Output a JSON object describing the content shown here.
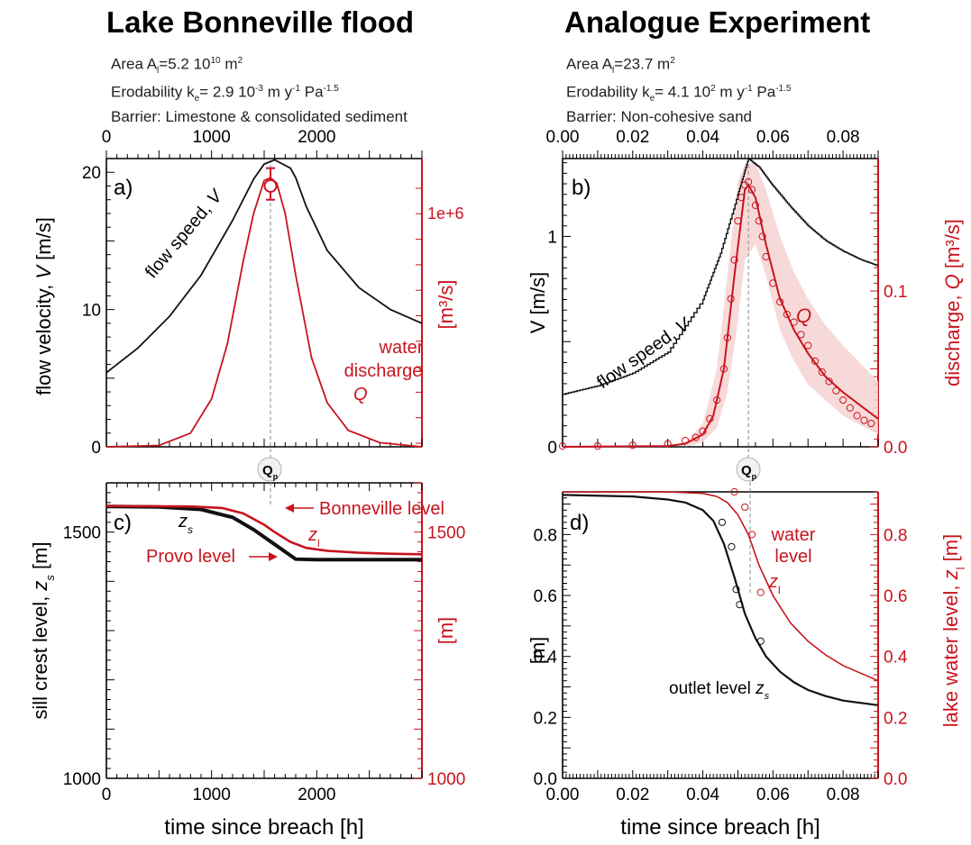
{
  "left_title": "Lake Bonneville flood",
  "right_title": "Analogue Experiment",
  "left_info": {
    "area": "Area Aₗ=5.2 10¹⁰ m²",
    "area_parts": [
      "Area A",
      "l",
      "=5.2 10",
      "10",
      " m",
      "2"
    ],
    "erod_parts": [
      "Erodability k",
      "e",
      "= 2.9 10",
      "-3",
      " m y",
      "-1",
      " Pa",
      "-1.5"
    ],
    "barrier": "Barrier: Limestone & consolidated sediment"
  },
  "right_info": {
    "area_parts": [
      "Area A",
      "l",
      "=23.7 m",
      "2"
    ],
    "erod_parts": [
      "Erodability k",
      "e",
      "= 4.1 10",
      "2",
      " m y",
      "-1",
      " Pa",
      "-1.5"
    ],
    "barrier": "Barrier: Non-cohesive sand"
  },
  "colors": {
    "black": "#111111",
    "red": "#c8141e",
    "band": "#f6d2d2",
    "grey": "#888888"
  },
  "qp_label": [
    "Q",
    "p"
  ],
  "chart_data": [
    {
      "panel": "a)",
      "type": "line",
      "xlabel": "time since breach [h]",
      "top_ticks": [
        "0",
        "1000",
        "2000"
      ],
      "x_top": [
        0,
        1000,
        2000
      ],
      "xlim": [
        0,
        3000
      ],
      "ylabel_left": [
        "flow velocity, ",
        "V",
        " [m/s]"
      ],
      "ylim_left": [
        0,
        21
      ],
      "yticks_left": [
        0,
        10,
        20
      ],
      "ylabel_right": "[m³/s]",
      "right_tick_label": "1e+6",
      "series": [
        {
          "name": "flow speed, V",
          "color": "#111111",
          "x": [
            0,
            300,
            600,
            900,
            1200,
            1400,
            1500,
            1600,
            1750,
            1800,
            1900,
            2100,
            2400,
            2700,
            3000
          ],
          "y": [
            5.4,
            7.2,
            9.5,
            12.5,
            16.5,
            19.5,
            20.6,
            20.9,
            20.3,
            19.6,
            17.5,
            14.3,
            11.6,
            10.0,
            9.0
          ]
        },
        {
          "name": "water discharge Q",
          "color": "#c8141e",
          "x": [
            0,
            500,
            800,
            1000,
            1150,
            1300,
            1400,
            1500,
            1560,
            1620,
            1700,
            1800,
            1950,
            2100,
            2300,
            2600,
            3000
          ],
          "y": [
            0,
            0.1,
            1.0,
            3.5,
            7.5,
            13.5,
            17.0,
            19.4,
            19.6,
            19.2,
            17.0,
            12.5,
            6.5,
            3.2,
            1.2,
            0.3,
            0.0
          ]
        }
      ],
      "peak_marker": {
        "x": 1560,
        "y": 19.0,
        "err": [
          18.0,
          20.3
        ]
      },
      "peak_line_x": 1560,
      "annotations": [
        "flow speed, V",
        "water",
        "discharge",
        "Q"
      ]
    },
    {
      "panel": "b)",
      "type": "line",
      "xlabel": "time since breach [h]",
      "top_ticks": [
        "0.00",
        "0.02",
        "0.04",
        "0.06",
        "0.08"
      ],
      "x_top": [
        0,
        0.02,
        0.04,
        0.06,
        0.08
      ],
      "xlim": [
        0,
        0.09
      ],
      "ylabel_left": "V [m/s]",
      "ylim_left": [
        0,
        1.37
      ],
      "yticks_left": [
        0,
        1
      ],
      "ylabel_right": [
        "discharge, ",
        "Q",
        " [m³/s]"
      ],
      "ylim_right": [
        0,
        0.185
      ],
      "yticks_right": [
        "0.0",
        "0.1"
      ],
      "series": [
        {
          "name": "flow speed, V",
          "color": "#111111",
          "x": [
            0,
            0.01,
            0.02,
            0.03,
            0.04,
            0.045,
            0.05,
            0.053,
            0.056,
            0.06,
            0.065,
            0.07,
            0.075,
            0.08,
            0.085,
            0.09
          ],
          "y": [
            0.25,
            0.29,
            0.35,
            0.45,
            0.7,
            0.92,
            1.2,
            1.37,
            1.33,
            1.24,
            1.14,
            1.05,
            0.98,
            0.93,
            0.89,
            0.86
          ]
        },
        {
          "name": "Q",
          "color": "#c8141e",
          "x": [
            0,
            0.03,
            0.035,
            0.04,
            0.043,
            0.046,
            0.049,
            0.052,
            0.053,
            0.055,
            0.058,
            0.062,
            0.066,
            0.07,
            0.075,
            0.08,
            0.09
          ],
          "y": [
            0,
            0.0005,
            0.002,
            0.008,
            0.02,
            0.05,
            0.11,
            0.165,
            0.168,
            0.16,
            0.13,
            0.095,
            0.075,
            0.06,
            0.045,
            0.035,
            0.018
          ]
        },
        {
          "name": "Q observed",
          "color": "#c8141e",
          "marker": "circle",
          "x": [
            0,
            0.01,
            0.02,
            0.03,
            0.035,
            0.038,
            0.04,
            0.042,
            0.044,
            0.046,
            0.047,
            0.048,
            0.049,
            0.05,
            0.051,
            0.052,
            0.053,
            0.054,
            0.055,
            0.056,
            0.057,
            0.058,
            0.06,
            0.062,
            0.064,
            0.066,
            0.068,
            0.07,
            0.072,
            0.074,
            0.076,
            0.078,
            0.08,
            0.082,
            0.084,
            0.086,
            0.088
          ],
          "y": [
            0.0005,
            0.0005,
            0.001,
            0.002,
            0.004,
            0.006,
            0.01,
            0.018,
            0.03,
            0.05,
            0.07,
            0.095,
            0.12,
            0.145,
            0.16,
            0.168,
            0.17,
            0.165,
            0.155,
            0.145,
            0.135,
            0.122,
            0.105,
            0.093,
            0.085,
            0.08,
            0.072,
            0.065,
            0.055,
            0.048,
            0.042,
            0.036,
            0.03,
            0.025,
            0.02,
            0.017,
            0.015
          ]
        }
      ],
      "band": {
        "x": [
          0.035,
          0.04,
          0.044,
          0.047,
          0.05,
          0.052,
          0.055,
          0.058,
          0.062,
          0.066,
          0.07,
          0.075,
          0.08,
          0.09
        ],
        "hi": [
          0.003,
          0.015,
          0.05,
          0.11,
          0.17,
          0.182,
          0.182,
          0.165,
          0.135,
          0.112,
          0.095,
          0.078,
          0.065,
          0.042
        ],
        "lo": [
          0,
          0.003,
          0.012,
          0.035,
          0.08,
          0.12,
          0.13,
          0.11,
          0.075,
          0.055,
          0.04,
          0.03,
          0.02,
          0.008
        ]
      },
      "peak_line_x": 0.053,
      "annotations": [
        "flow speed, V",
        "Q"
      ]
    },
    {
      "panel": "c)",
      "type": "line",
      "xlabel": "time since breach [h]",
      "xticks": [
        "0",
        "1000",
        "2000"
      ],
      "x_bottom": [
        0,
        1000,
        2000
      ],
      "xlim": [
        0,
        3000
      ],
      "ylabel_left": [
        "sill crest level, ",
        "z",
        "s",
        " [m]"
      ],
      "ylim_left": [
        1000,
        1600
      ],
      "yticks_left": [
        "1000",
        "1500"
      ],
      "ylabel_right": "[m]",
      "yticks_right": [
        "1000",
        "1500"
      ],
      "series": [
        {
          "name": "z_s",
          "color": "#111111",
          "x": [
            0,
            500,
            900,
            1200,
            1400,
            1600,
            1800,
            2000,
            2500,
            3000
          ],
          "y": [
            1552,
            1551,
            1546,
            1530,
            1505,
            1475,
            1445,
            1444,
            1444,
            1444
          ]
        },
        {
          "name": "z_l",
          "color": "#c8141e",
          "x": [
            0,
            800,
            1100,
            1300,
            1500,
            1600,
            1750,
            1900,
            2100,
            2400,
            2700,
            3000
          ],
          "y": [
            1553,
            1552,
            1549,
            1538,
            1515,
            1500,
            1480,
            1468,
            1462,
            1458,
            1456,
            1455
          ]
        }
      ],
      "annotations": [
        "Bonneville level",
        "z",
        "l",
        "z",
        "s",
        "Provo level"
      ]
    },
    {
      "panel": "d)",
      "type": "line",
      "xlabel": "time since breach [h]",
      "xticks": [
        "0.00",
        "0.02",
        "0.04",
        "0.06",
        "0.08"
      ],
      "x_bottom": [
        0,
        0.02,
        0.04,
        0.06,
        0.08
      ],
      "xlim": [
        0,
        0.09
      ],
      "ylabel_left": "[m]",
      "ylim_left": [
        0,
        0.94
      ],
      "yticks_left": [
        "0.0",
        "0.2",
        "0.4",
        "0.6",
        "0.8"
      ],
      "ylabel_right": [
        "lake water level, ",
        "z",
        "l",
        " [m]"
      ],
      "yticks_right": [
        "0.0",
        "0.2",
        "0.4",
        "0.6",
        "0.8"
      ],
      "series": [
        {
          "name": "outlet level z_s",
          "color": "#111111",
          "x": [
            0,
            0.02,
            0.03,
            0.035,
            0.04,
            0.043,
            0.046,
            0.049,
            0.052,
            0.055,
            0.058,
            0.062,
            0.066,
            0.07,
            0.075,
            0.08,
            0.09
          ],
          "y": [
            0.93,
            0.925,
            0.915,
            0.905,
            0.88,
            0.845,
            0.77,
            0.66,
            0.54,
            0.46,
            0.4,
            0.35,
            0.315,
            0.29,
            0.27,
            0.255,
            0.24
          ]
        },
        {
          "name": "water level z_l",
          "color": "#c8141e",
          "x": [
            0,
            0.03,
            0.04,
            0.044,
            0.047,
            0.05,
            0.053,
            0.056,
            0.06,
            0.065,
            0.07,
            0.075,
            0.08,
            0.09
          ],
          "y": [
            0.94,
            0.94,
            0.935,
            0.925,
            0.905,
            0.865,
            0.8,
            0.7,
            0.6,
            0.51,
            0.45,
            0.405,
            0.37,
            0.32
          ]
        },
        {
          "name": "z_s observed",
          "color": "#111111",
          "marker": "circle",
          "x": [
            0.0455,
            0.0482,
            0.0495,
            0.0505,
            0.0565
          ],
          "y": [
            0.84,
            0.76,
            0.62,
            0.57,
            0.45
          ]
        },
        {
          "name": "z_l observed",
          "color": "#c8141e",
          "marker": "circle",
          "x": [
            0.049,
            0.052,
            0.054,
            0.0565
          ],
          "y": [
            0.94,
            0.89,
            0.8,
            0.61
          ]
        }
      ],
      "peak_line_x": 0.0535,
      "annotations": [
        "water",
        "level",
        "z",
        "l",
        "outlet level ",
        "z",
        "s"
      ]
    }
  ]
}
